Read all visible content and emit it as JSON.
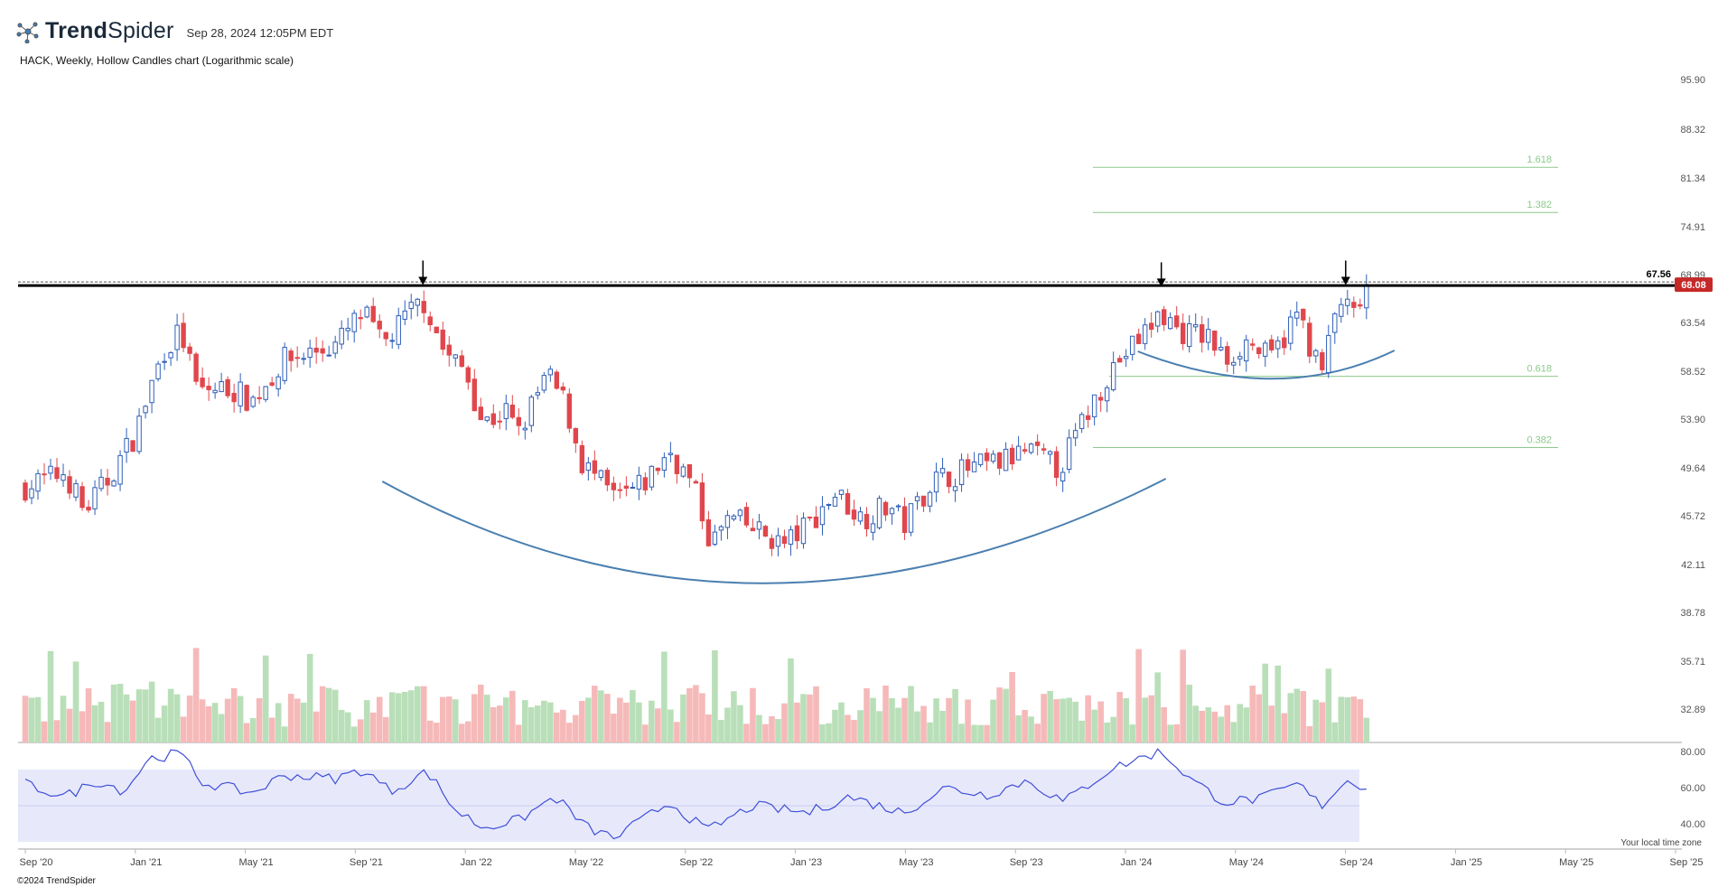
{
  "header": {
    "brand_regular": "Trend",
    "brand_bold_part": "Spider",
    "timestamp": "Sep 28, 2024 12:05PM EDT",
    "chart_description": "HACK, Weekly, Hollow Candles chart (Logarithmic scale)",
    "copyright": "©2024 TrendSpider",
    "timezone_note": "Your local time zone"
  },
  "colors": {
    "up": "#2f5fb8",
    "down": "#e0474c",
    "volume_up": "#b9dfb9",
    "volume_down": "#f6b9b9",
    "fib": "#8cc98c",
    "arc": "#4a7fb0",
    "rsi": "#3f4fd6",
    "rsi_band": "#e7e9fb",
    "resistance": "#000000",
    "last_price_badge": "#c62828"
  },
  "chart_data": {
    "type": "candlestick",
    "symbol": "HACK",
    "interval": "Weekly",
    "scale": "log",
    "price_axis_ticks": [
      "95.90",
      "88.32",
      "81.34",
      "74.91",
      "68.99",
      "63.54",
      "58.52",
      "53.90",
      "49.64",
      "45.72",
      "42.11",
      "38.78",
      "35.71",
      "32.89"
    ],
    "date_axis_ticks": [
      "Sep '20",
      "Jan '21",
      "May '21",
      "Sep '21",
      "Jan '22",
      "May '22",
      "Sep '22",
      "Jan '23",
      "May '23",
      "Sep '23",
      "Jan '24",
      "May '24",
      "Sep '24",
      "Jan '25",
      "May '25",
      "Sep '25"
    ],
    "resistance_label": "67.56",
    "resistance": 67.56,
    "last_price": "68.08",
    "fib_levels": [
      "1.618",
      "1.382",
      "0.618",
      "0.382"
    ],
    "price_path": [
      [
        "2020-09-01",
        48.0
      ],
      [
        "2020-10-15",
        49.2
      ],
      [
        "2020-11-05",
        46.0
      ],
      [
        "2020-12-01",
        48.5
      ],
      [
        "2021-01-01",
        52.5
      ],
      [
        "2021-02-01",
        60.5
      ],
      [
        "2021-02-20",
        62.5
      ],
      [
        "2021-03-10",
        56.5
      ],
      [
        "2021-04-15",
        56.8
      ],
      [
        "2021-05-10",
        55.5
      ],
      [
        "2021-06-15",
        59.5
      ],
      [
        "2021-07-20",
        60.5
      ],
      [
        "2021-08-10",
        61.0
      ],
      [
        "2021-09-10",
        64.5
      ],
      [
        "2021-10-01",
        61.0
      ],
      [
        "2021-11-01",
        64.5
      ],
      [
        "2021-11-15",
        66.0
      ],
      [
        "2021-12-10",
        60.0
      ],
      [
        "2022-01-01",
        58.5
      ],
      [
        "2022-01-20",
        53.5
      ],
      [
        "2022-02-15",
        54.5
      ],
      [
        "2022-03-01",
        52.5
      ],
      [
        "2022-04-01",
        58.0
      ],
      [
        "2022-04-20",
        55.5
      ],
      [
        "2022-05-10",
        50.0
      ],
      [
        "2022-06-15",
        47.0
      ],
      [
        "2022-07-15",
        48.0
      ],
      [
        "2022-08-15",
        51.0
      ],
      [
        "2022-09-10",
        48.0
      ],
      [
        "2022-09-30",
        43.5
      ],
      [
        "2022-10-20",
        45.5
      ],
      [
        "2022-11-20",
        44.5
      ],
      [
        "2022-12-20",
        43.5
      ],
      [
        "2023-01-15",
        45.0
      ],
      [
        "2023-02-15",
        47.5
      ],
      [
        "2023-03-15",
        45.5
      ],
      [
        "2023-04-15",
        46.5
      ],
      [
        "2023-05-01",
        45.0
      ],
      [
        "2023-06-01",
        48.5
      ],
      [
        "2023-07-15",
        49.5
      ],
      [
        "2023-08-15",
        50.0
      ],
      [
        "2023-09-15",
        51.0
      ],
      [
        "2023-10-20",
        49.5
      ],
      [
        "2023-11-15",
        53.5
      ],
      [
        "2023-12-15",
        58.5
      ],
      [
        "2024-01-15",
        61.5
      ],
      [
        "2024-02-10",
        64.5
      ],
      [
        "2024-03-01",
        62.5
      ],
      [
        "2024-04-01",
        62.0
      ],
      [
        "2024-04-20",
        59.5
      ],
      [
        "2024-05-15",
        61.5
      ],
      [
        "2024-06-10",
        59.5
      ],
      [
        "2024-07-10",
        64.5
      ],
      [
        "2024-08-05",
        58.0
      ],
      [
        "2024-08-25",
        66.0
      ],
      [
        "2024-09-10",
        64.0
      ],
      [
        "2024-09-27",
        68.08
      ]
    ],
    "volume_indicator": "volume",
    "rsi": {
      "axis_ticks": [
        "80.00",
        "60.00",
        "40.00"
      ],
      "band": [
        30,
        70
      ],
      "path": [
        [
          "2020-09-01",
          62
        ],
        [
          "2020-10-15",
          55
        ],
        [
          "2020-11-20",
          64
        ],
        [
          "2020-12-20",
          58
        ],
        [
          "2021-01-15",
          76
        ],
        [
          "2021-02-20",
          79
        ],
        [
          "2021-03-15",
          63
        ],
        [
          "2021-05-10",
          57
        ],
        [
          "2021-06-15",
          67
        ],
        [
          "2021-08-10",
          65
        ],
        [
          "2021-09-10",
          70
        ],
        [
          "2021-10-10",
          58
        ],
        [
          "2021-11-20",
          69
        ],
        [
          "2021-12-20",
          48
        ],
        [
          "2022-01-20",
          38
        ],
        [
          "2022-03-01",
          42
        ],
        [
          "2022-04-10",
          55
        ],
        [
          "2022-05-15",
          38
        ],
        [
          "2022-06-15",
          32
        ],
        [
          "2022-08-15",
          52
        ],
        [
          "2022-09-25",
          36
        ],
        [
          "2022-11-15",
          50
        ],
        [
          "2023-01-15",
          46
        ],
        [
          "2023-03-01",
          55
        ],
        [
          "2023-05-01",
          46
        ],
        [
          "2023-06-15",
          60
        ],
        [
          "2023-08-01",
          56
        ],
        [
          "2023-09-15",
          64
        ],
        [
          "2023-10-25",
          52
        ],
        [
          "2023-12-15",
          70
        ],
        [
          "2024-01-15",
          76
        ],
        [
          "2024-02-10",
          80
        ],
        [
          "2024-03-15",
          64
        ],
        [
          "2024-04-20",
          52
        ],
        [
          "2024-06-01",
          54
        ],
        [
          "2024-07-10",
          62
        ],
        [
          "2024-08-05",
          50
        ],
        [
          "2024-09-01",
          64
        ],
        [
          "2024-09-27",
          60
        ]
      ]
    },
    "annotations": [
      "rounding bottom arc",
      "small rounding bottom arc",
      "down arrows at resistance touches"
    ]
  }
}
